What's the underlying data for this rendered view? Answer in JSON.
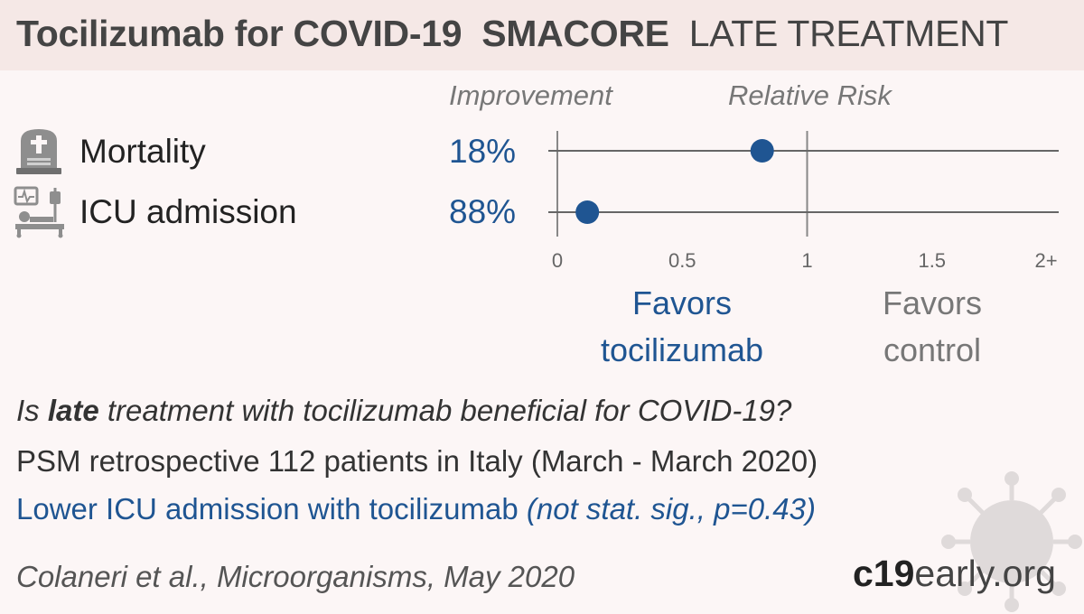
{
  "title": {
    "drug_condition": "Tocilizumab for COVID-19",
    "study": "SMACORE",
    "stage": "LATE TREATMENT"
  },
  "columns": {
    "improvement": "Improvement",
    "relative_risk": "Relative Risk"
  },
  "rows": [
    {
      "label": "Mortality",
      "improvement": "18%",
      "icon": "tombstone-icon"
    },
    {
      "label": "ICU admission",
      "improvement": "88%",
      "icon": "hospital-bed-icon"
    }
  ],
  "axis": {
    "ticks": [
      "0",
      "0.5",
      "1",
      "1.5",
      "2+"
    ],
    "favors_left": [
      "Favors",
      "tocilizumab"
    ],
    "favors_right": [
      "Favors",
      "control"
    ]
  },
  "question": {
    "pre": "Is ",
    "bold": "late",
    "post": " treatment with tocilizumab beneficial for COVID-19?"
  },
  "description": "PSM retrospective 112 patients in Italy (March - March 2020)",
  "result": {
    "main": "Lower ICU admission with tocilizumab ",
    "detail": "(not stat. sig., p=0.43)"
  },
  "citation": "Colaneri et al., Microorganisms, May 2020",
  "brand": {
    "bold": "c19",
    "light": "early.org"
  },
  "colors": {
    "accent": "#1f5592",
    "text": "#333333",
    "axis": "#777777",
    "background": "#fcf6f6",
    "header": "#f5e8e6"
  },
  "chart_data": {
    "type": "scatter",
    "title": "Relative Risk",
    "categories": [
      "Mortality",
      "ICU admission"
    ],
    "values": [
      0.82,
      0.12
    ],
    "xlim": [
      0,
      2
    ],
    "x_ticks": [
      0,
      0.5,
      1,
      1.5,
      2
    ],
    "x_tick_labels": [
      "0",
      "0.5",
      "1",
      "1.5",
      "2+"
    ],
    "reference_line": 1,
    "grid": false
  }
}
